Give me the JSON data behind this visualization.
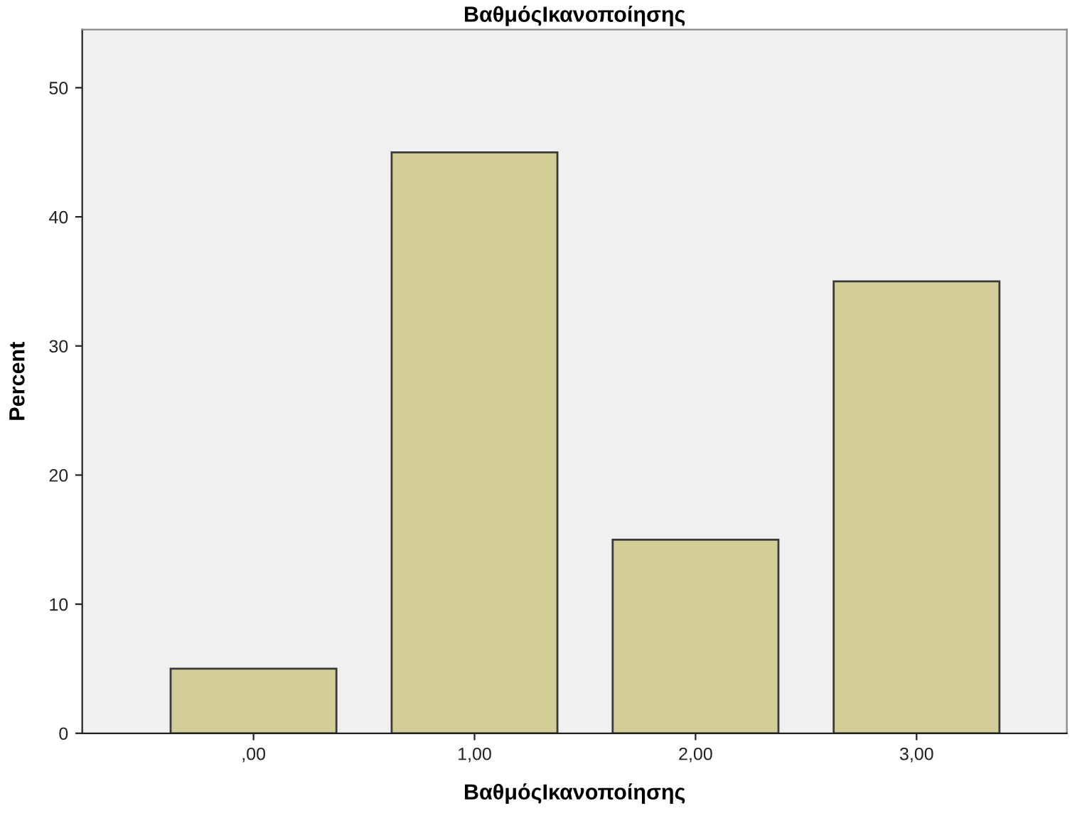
{
  "chart_data": {
    "type": "bar",
    "title": "ΒαθμόςΙκανοποίησης",
    "xlabel": "ΒαθμόςΙκανοποίησης",
    "ylabel": "Percent",
    "categories": [
      ",00",
      "1,00",
      "2,00",
      "3,00"
    ],
    "values": [
      5,
      45,
      15,
      35
    ],
    "color": "#d3ce98",
    "ylim": [
      0,
      54.5
    ],
    "yticks": [
      0,
      10,
      20,
      30,
      40,
      50
    ],
    "grid": false,
    "legend": false
  }
}
